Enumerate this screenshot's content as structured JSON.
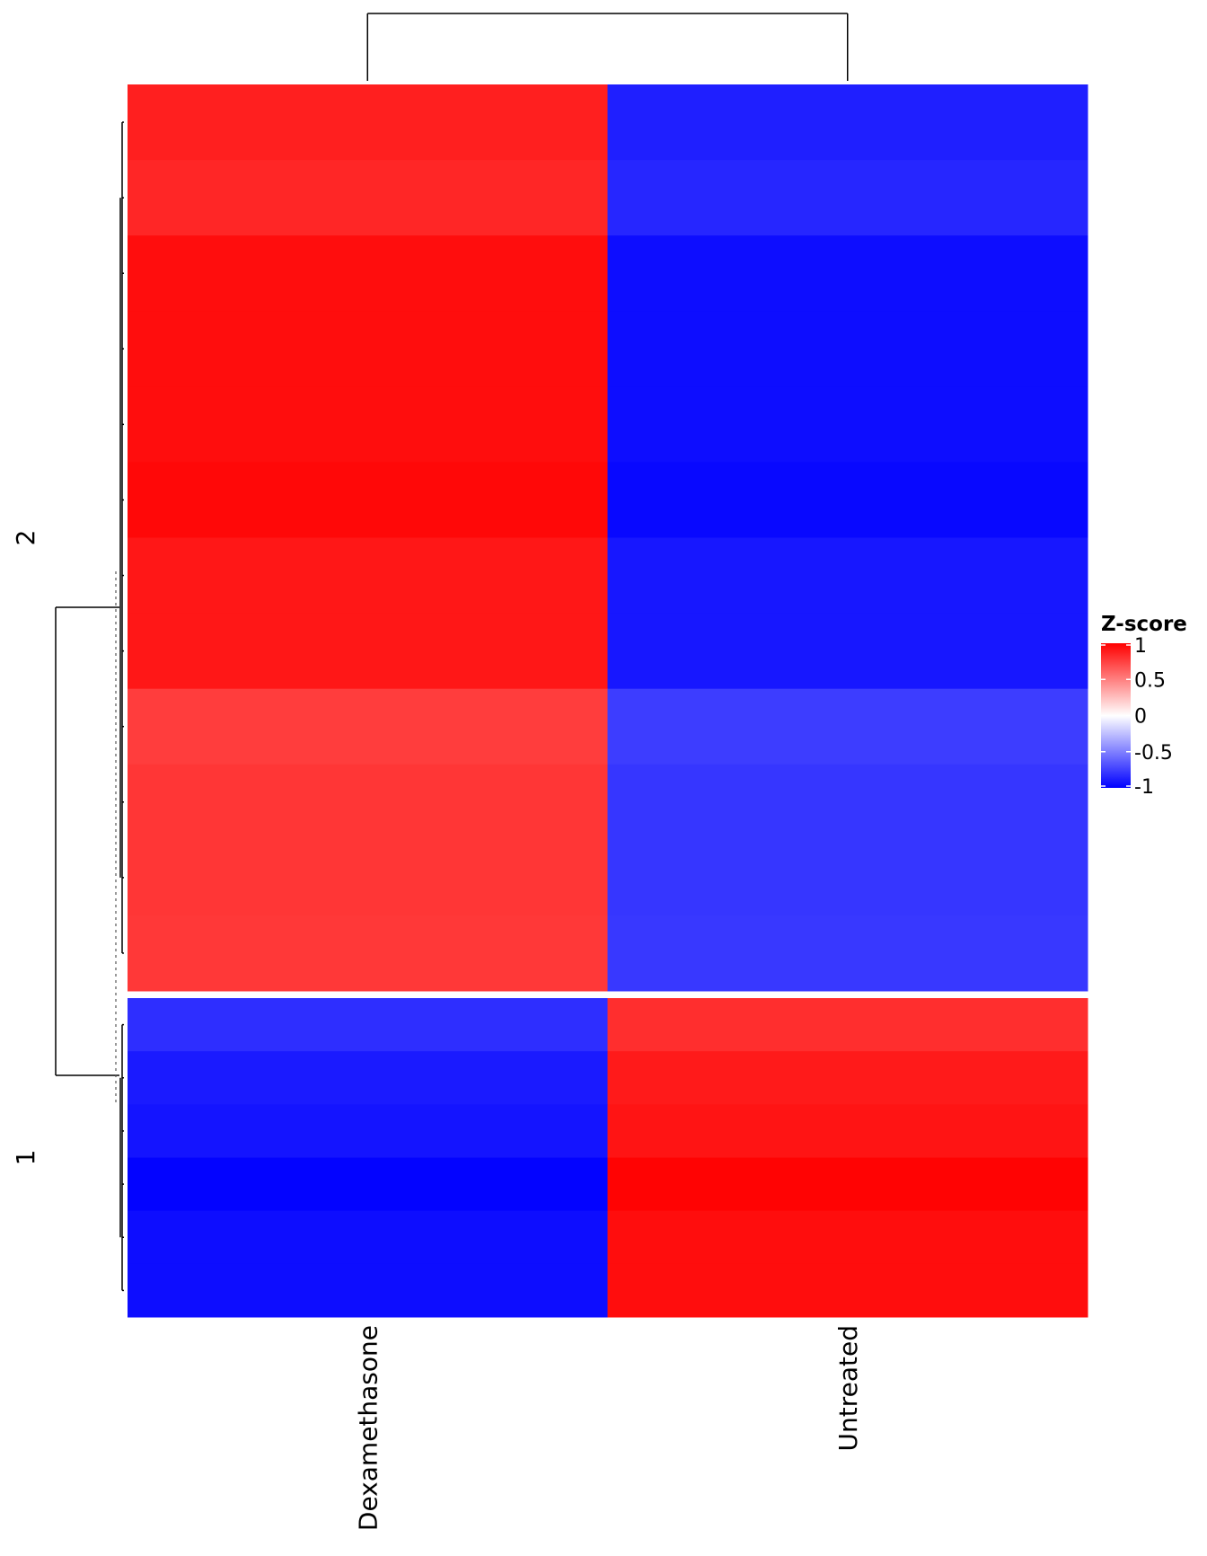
{
  "chart_data": {
    "type": "heatmap",
    "title": "",
    "columns": [
      "Dexamethasone",
      "Untreated"
    ],
    "legend": {
      "title": "Z-score",
      "ticks": [
        1,
        0.5,
        0,
        -0.5,
        -1
      ],
      "tick_labels": [
        "1",
        "0.5",
        "0",
        "-0.5",
        "-1"
      ],
      "range": [
        -1,
        1
      ],
      "colors": {
        "low": "#0000ff",
        "mid": "#ffffff",
        "high": "#ff0000"
      },
      "placement": "right"
    },
    "row_slices": [
      {
        "label": "2",
        "rows": [
          {
            "values": [
              0.88,
              -0.88
            ]
          },
          {
            "values": [
              0.85,
              -0.85
            ]
          },
          {
            "values": [
              0.95,
              -0.95
            ]
          },
          {
            "values": [
              0.95,
              -0.95
            ]
          },
          {
            "values": [
              0.95,
              -0.95
            ]
          },
          {
            "values": [
              0.97,
              -0.97
            ]
          },
          {
            "values": [
              0.91,
              -0.91
            ]
          },
          {
            "values": [
              0.91,
              -0.91
            ]
          },
          {
            "values": [
              0.76,
              -0.76
            ]
          },
          {
            "values": [
              0.79,
              -0.79
            ]
          },
          {
            "values": [
              0.79,
              -0.79
            ]
          },
          {
            "values": [
              0.78,
              -0.78
            ]
          }
        ]
      },
      {
        "label": "1",
        "rows": [
          {
            "values": [
              -0.82,
              0.82
            ]
          },
          {
            "values": [
              -0.9,
              0.9
            ]
          },
          {
            "values": [
              -0.92,
              0.92
            ]
          },
          {
            "values": [
              -0.99,
              0.99
            ]
          },
          {
            "values": [
              -0.95,
              0.95
            ]
          },
          {
            "values": [
              -0.95,
              0.95
            ]
          }
        ]
      }
    ],
    "column_dendrogram": true,
    "row_dendrogram": true
  }
}
